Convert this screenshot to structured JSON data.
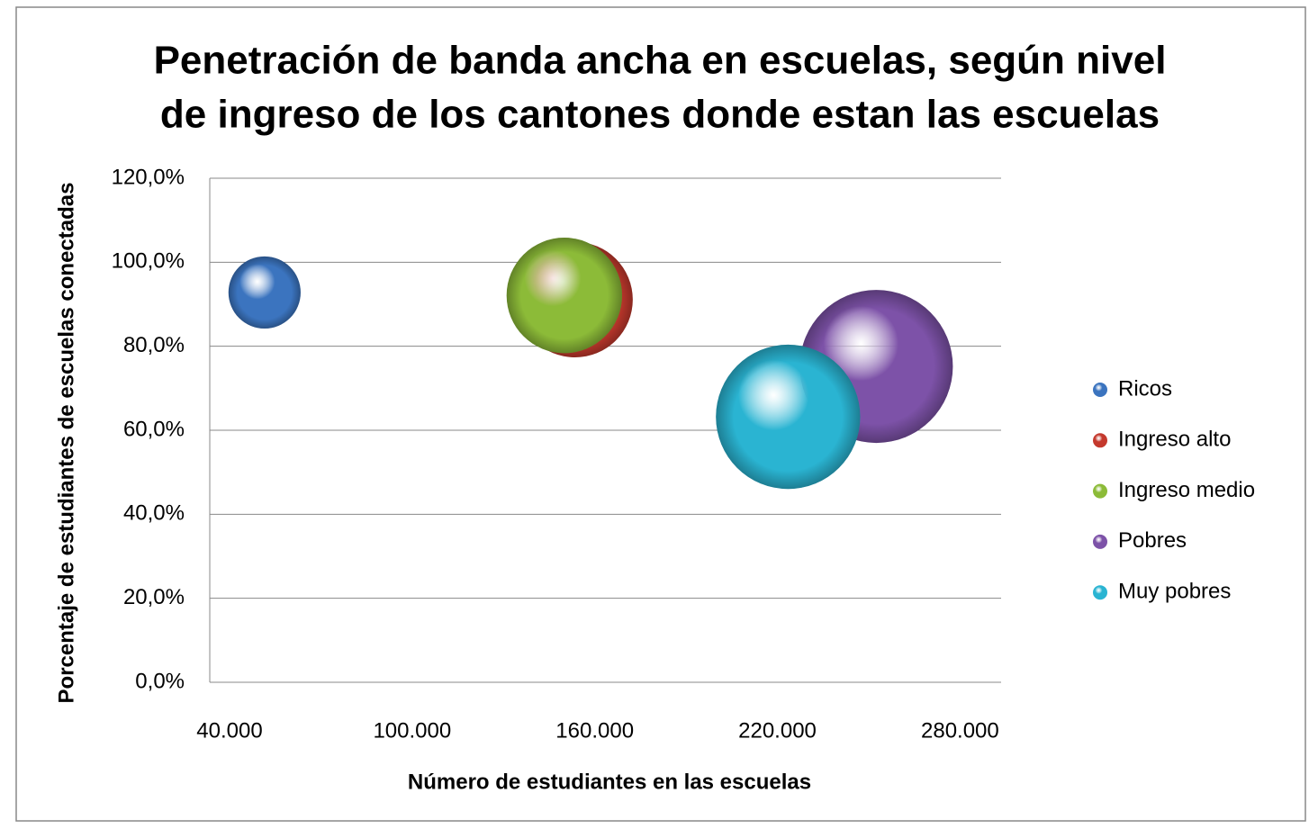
{
  "chart_data": {
    "type": "bubble",
    "title": [
      "Penetración de banda ancha en escuelas, según nivel",
      "de ingreso de los cantones donde estan las escuelas"
    ],
    "x_label": "Número de estudiantes en las escuelas",
    "y_label": "Porcentaje de estudiantes de escuelas conectadas",
    "xlim": [
      40000,
      300000
    ],
    "xticks": [
      {
        "value": 40000,
        "label": "40.000"
      },
      {
        "value": 100000,
        "label": "100.000"
      },
      {
        "value": 160000,
        "label": "160.000"
      },
      {
        "value": 220000,
        "label": "220.000"
      },
      {
        "value": 280000,
        "label": "280.000"
      }
    ],
    "ylim": [
      0,
      120
    ],
    "yticks": [
      {
        "value": 0,
        "label": "0,0%"
      },
      {
        "value": 20,
        "label": "20,0%"
      },
      {
        "value": 40,
        "label": "40,0%"
      },
      {
        "value": 60,
        "label": "60,0%"
      },
      {
        "value": 80,
        "label": "80,0%"
      },
      {
        "value": 100,
        "label": "100,0%"
      },
      {
        "value": 120,
        "label": "120,0%"
      }
    ],
    "grid": true,
    "legend": "right",
    "series": [
      {
        "name": "Ricos",
        "color": "#3b74bf",
        "x": [
          58000
        ],
        "values": [
          92.8
        ],
        "sizes": [
          16
        ]
      },
      {
        "name": "Ingreso alto",
        "color": "#c4392d",
        "x": [
          160000
        ],
        "values": [
          91.1
        ],
        "sizes": [
          41
        ]
      },
      {
        "name": "Ingreso medio",
        "color": "#8cbb38",
        "x": [
          156500
        ],
        "values": [
          92.1
        ],
        "sizes": [
          41
        ]
      },
      {
        "name": "Pobres",
        "color": "#7d52a8",
        "x": [
          259000
        ],
        "values": [
          75.2
        ],
        "sizes": [
          72
        ]
      },
      {
        "name": "Muy pobres",
        "color": "#2ab4d2",
        "x": [
          230000
        ],
        "values": [
          63.2
        ],
        "sizes": [
          64
        ]
      }
    ]
  }
}
